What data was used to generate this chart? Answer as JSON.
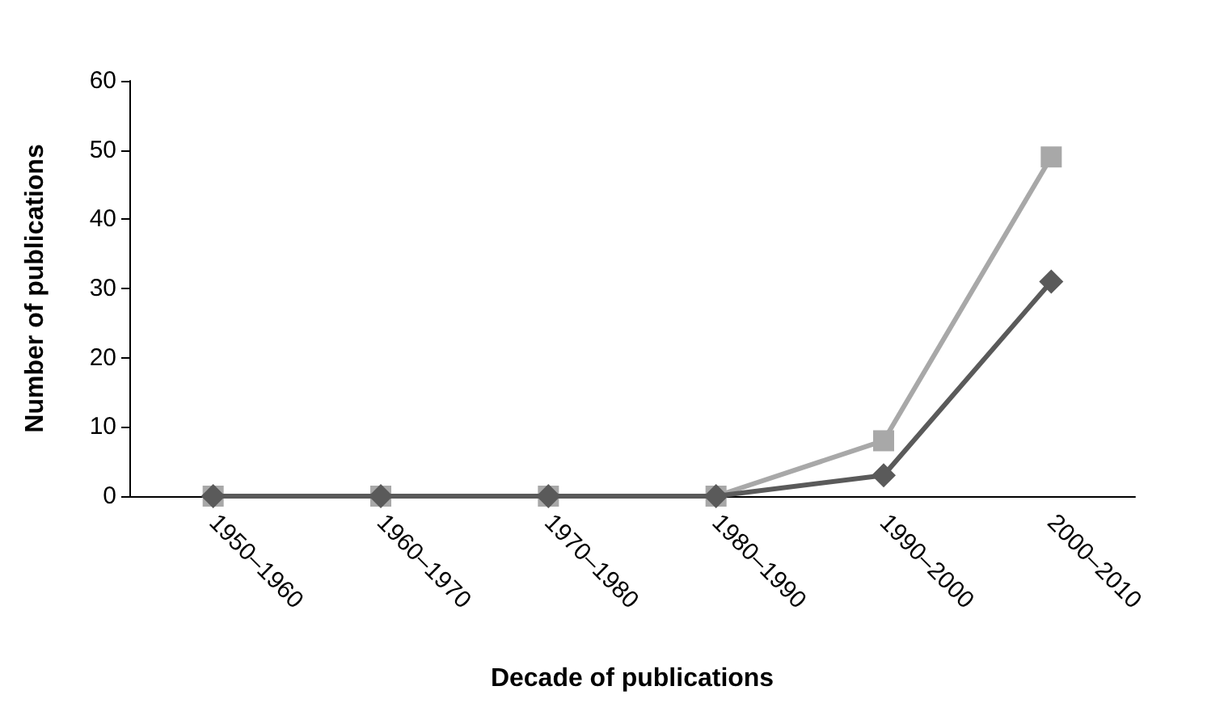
{
  "chart_data": {
    "type": "line",
    "xlabel": "Decade of publications",
    "ylabel": "Number of publications",
    "categories": [
      "1950–1960",
      "1960–1970",
      "1970–1980",
      "1980–1990",
      "1990–2000",
      "2000–2010"
    ],
    "series": [
      {
        "color": "#5a5a5a",
        "marker": "diamond",
        "values": [
          0,
          0,
          0,
          0,
          3,
          31
        ]
      },
      {
        "color": "#a8a8a8",
        "marker": "square",
        "values": [
          0,
          0,
          0,
          0,
          8,
          49
        ]
      }
    ],
    "ylim": [
      0,
      60
    ],
    "yticks": [
      0,
      10,
      20,
      30,
      40,
      50,
      60
    ],
    "grid": false,
    "line_style": "solid"
  }
}
